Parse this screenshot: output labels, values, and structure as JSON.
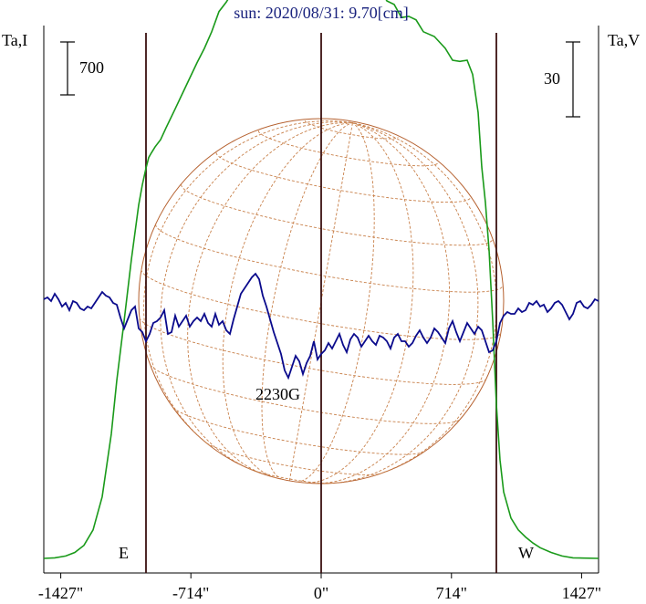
{
  "title": "sun: 2020/08/31: 9.70[cm]",
  "left_axis_label": "Ta,I",
  "right_axis_label": "Ta,V",
  "scale_left": {
    "value": "700"
  },
  "scale_right": {
    "value": "30"
  },
  "limb_labels": {
    "east": "E",
    "west": "W"
  },
  "annotation": "2230G",
  "x_ticks": [
    "-1427\"",
    "-714\"",
    "0\"",
    "714\"",
    "1427\""
  ],
  "colors": {
    "intensity": "#1a9a1a",
    "polarization": "#0a0a8c",
    "disk": "#b5602e",
    "grid": "#c8804a",
    "markers": "#3a1010",
    "title": "#1a237e"
  },
  "chart_data": {
    "type": "line",
    "title": "sun: 2020/08/31: 9.70[cm]",
    "xlabel": "",
    "ylabel_left": "Ta,I",
    "ylabel_right": "Ta,V",
    "xlim": [
      -1520,
      1520
    ],
    "x_tick_values": [
      -1427,
      -714,
      0,
      714,
      1427
    ],
    "vertical_markers": [
      -960,
      0,
      960
    ],
    "scale_bars": {
      "intensity": 700,
      "polarization": 30
    },
    "ylim_intensity": [
      0,
      4200
    ],
    "ylim_polarization": [
      -100,
      100
    ],
    "series": [
      {
        "name": "Ta,I",
        "axis": "left",
        "x": [
          -1520,
          -1460,
          -1400,
          -1350,
          -1300,
          -1250,
          -1200,
          -1150,
          -1120,
          -1080,
          -1040,
          -1000,
          -980,
          -960,
          -945,
          -930,
          -910,
          -880,
          -850,
          -800,
          -760,
          -720,
          -680,
          -640,
          -600,
          -560,
          -520,
          -480,
          -440,
          -420,
          -400,
          -380,
          -360,
          -340,
          -320,
          -300,
          -260,
          -230,
          -200,
          -170,
          -150,
          -130,
          -100,
          -60,
          -20,
          0,
          40,
          80,
          120,
          160,
          200,
          240,
          280,
          320,
          360,
          400,
          440,
          480,
          520,
          560,
          620,
          680,
          720,
          760,
          800,
          830,
          860,
          880,
          900,
          920,
          940,
          960,
          980,
          1000,
          1040,
          1080,
          1120,
          1160,
          1200,
          1260,
          1320,
          1380,
          1440,
          1520
        ],
        "values": [
          0,
          5,
          20,
          50,
          110,
          240,
          520,
          1050,
          1500,
          2000,
          2520,
          2980,
          3150,
          3290,
          3380,
          3420,
          3470,
          3530,
          3630,
          3790,
          3920,
          4050,
          4180,
          4300,
          4440,
          4610,
          4690,
          4790,
          4960,
          5120,
          5230,
          5280,
          5130,
          4990,
          4920,
          4860,
          4890,
          4990,
          4920,
          4990,
          4880,
          4830,
          4840,
          4830,
          4840,
          4820,
          4850,
          4830,
          4830,
          4800,
          4880,
          4960,
          4960,
          4810,
          4700,
          4670,
          4560,
          4570,
          4540,
          4440,
          4400,
          4300,
          4200,
          4190,
          4200,
          4080,
          3760,
          3300,
          3000,
          2600,
          2000,
          1300,
          830,
          560,
          340,
          240,
          180,
          130,
          90,
          50,
          20,
          5,
          2,
          0
        ]
      },
      {
        "name": "Ta,V",
        "axis": "right",
        "x": [
          -1520,
          -1500,
          -1480,
          -1460,
          -1440,
          -1420,
          -1400,
          -1380,
          -1360,
          -1340,
          -1320,
          -1300,
          -1280,
          -1260,
          -1240,
          -1220,
          -1200,
          -1180,
          -1160,
          -1140,
          -1120,
          -1100,
          -1080,
          -1060,
          -1040,
          -1020,
          -1000,
          -980,
          -960,
          -940,
          -920,
          -900,
          -880,
          -860,
          -840,
          -820,
          -800,
          -780,
          -760,
          -740,
          -720,
          -700,
          -680,
          -660,
          -640,
          -620,
          -600,
          -580,
          -560,
          -540,
          -520,
          -500,
          -480,
          -460,
          -440,
          -420,
          -400,
          -380,
          -360,
          -340,
          -320,
          -300,
          -280,
          -260,
          -240,
          -220,
          -200,
          -180,
          -160,
          -140,
          -120,
          -100,
          -80,
          -60,
          -40,
          -20,
          0,
          20,
          40,
          60,
          80,
          100,
          120,
          140,
          160,
          180,
          200,
          220,
          240,
          260,
          280,
          300,
          320,
          340,
          360,
          380,
          400,
          420,
          440,
          460,
          480,
          500,
          520,
          540,
          560,
          580,
          600,
          620,
          640,
          660,
          680,
          700,
          720,
          740,
          760,
          780,
          800,
          820,
          840,
          860,
          880,
          900,
          920,
          940,
          960,
          980,
          1000,
          1020,
          1040,
          1060,
          1080,
          1100,
          1120,
          1140,
          1160,
          1180,
          1200,
          1220,
          1240,
          1260,
          1280,
          1300,
          1320,
          1340,
          1360,
          1380,
          1400,
          1420,
          1440,
          1460,
          1480,
          1500,
          1520
        ],
        "values": [
          1,
          2,
          0,
          4,
          1,
          -3,
          -1,
          -5,
          0,
          -1,
          -4,
          -5,
          -3,
          -4,
          -1,
          2,
          5,
          3,
          2,
          -1,
          -2,
          -9,
          -15,
          -10,
          -5,
          -3,
          -15,
          -17,
          -22,
          -18,
          -12,
          -11,
          -9,
          -5,
          -18,
          -17,
          -8,
          -14,
          -11,
          -8,
          -14,
          -11,
          -9,
          -11,
          -7,
          -12,
          -14,
          -7,
          -13,
          -11,
          -16,
          -18,
          -10,
          -3,
          4,
          7,
          10,
          13,
          15,
          12,
          3,
          -3,
          -10,
          -17,
          -23,
          -29,
          -38,
          -42,
          -36,
          -30,
          -33,
          -40,
          -34,
          -30,
          -22,
          -32,
          -29,
          -27,
          -23,
          -26,
          -22,
          -18,
          -24,
          -28,
          -21,
          -18,
          -20,
          -25,
          -22,
          -19,
          -22,
          -24,
          -19,
          -20,
          -22,
          -26,
          -20,
          -18,
          -22,
          -22,
          -25,
          -23,
          -19,
          -16,
          -20,
          -23,
          -20,
          -15,
          -17,
          -20,
          -23,
          -15,
          -11,
          -17,
          -22,
          -17,
          -12,
          -15,
          -18,
          -14,
          -16,
          -22,
          -28,
          -27,
          -22,
          -12,
          -8,
          -6,
          -7,
          -7,
          -4,
          -6,
          -5,
          -1,
          -2,
          0,
          -3,
          -2,
          -6,
          -4,
          -1,
          0,
          -2,
          -6,
          -10,
          -7,
          -1,
          0,
          -3,
          -4,
          -2,
          1,
          0
        ]
      }
    ]
  }
}
